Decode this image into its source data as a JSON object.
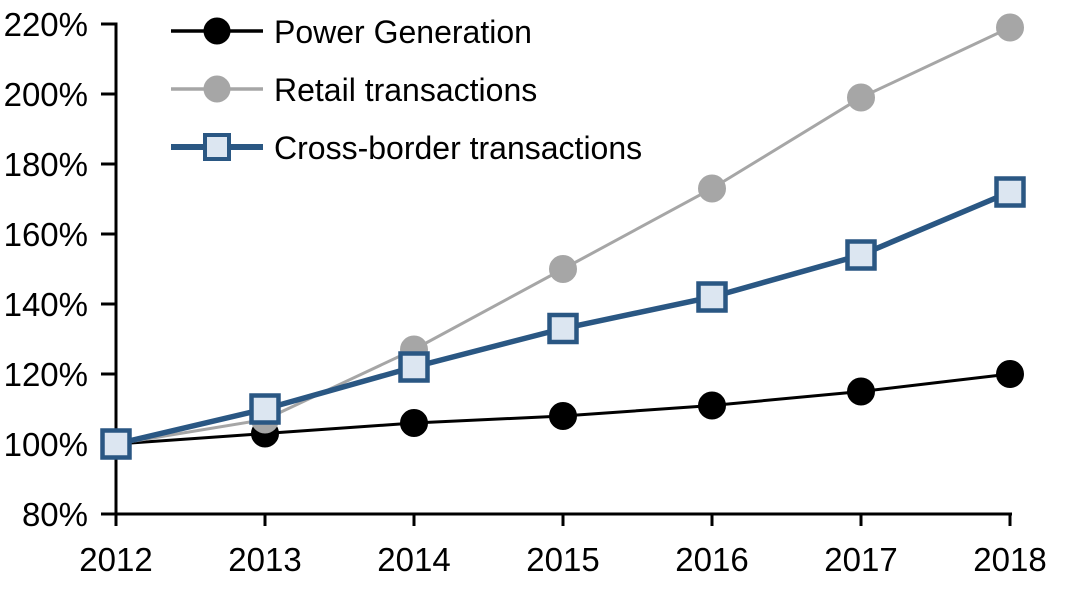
{
  "chart_data": {
    "type": "line",
    "title": "",
    "xlabel": "",
    "ylabel": "",
    "x": [
      2012,
      2013,
      2014,
      2015,
      2016,
      2017,
      2018
    ],
    "x_tick_labels": [
      "2012",
      "2013",
      "2014",
      "2015",
      "2016",
      "2017",
      "2018"
    ],
    "y_axis": {
      "min": 80,
      "max": 220,
      "step": 20,
      "tick_labels": [
        "80%",
        "100%",
        "120%",
        "140%",
        "160%",
        "180%",
        "200%",
        "220%"
      ]
    },
    "grid": false,
    "legend_position": "top-left",
    "background_color": "#FFFFFF",
    "axis_color": "#000000",
    "series": [
      {
        "name": "Power Generation",
        "values": [
          100,
          103,
          106,
          108,
          111,
          115,
          120
        ],
        "line_color": "#000000",
        "line_width": 3,
        "marker": "circle",
        "marker_fill": "#000000",
        "marker_stroke": "#000000",
        "marker_radius": 13.5
      },
      {
        "name": "Retail transactions",
        "values": [
          100,
          107,
          127,
          150,
          173,
          199,
          219
        ],
        "line_color": "#A6A6A6",
        "line_width": 3,
        "marker": "circle",
        "marker_fill": "#A6A6A6",
        "marker_stroke": "#A6A6A6",
        "marker_radius": 13.5
      },
      {
        "name": "Cross-border transactions",
        "values": [
          100,
          110,
          122,
          133,
          142,
          154,
          172
        ],
        "line_color": "#2A5783",
        "line_width": 5.5,
        "marker": "square",
        "marker_fill": "#DCE6F1",
        "marker_stroke": "#2A5783",
        "marker_size": 27,
        "marker_stroke_width": 4.5
      }
    ]
  }
}
